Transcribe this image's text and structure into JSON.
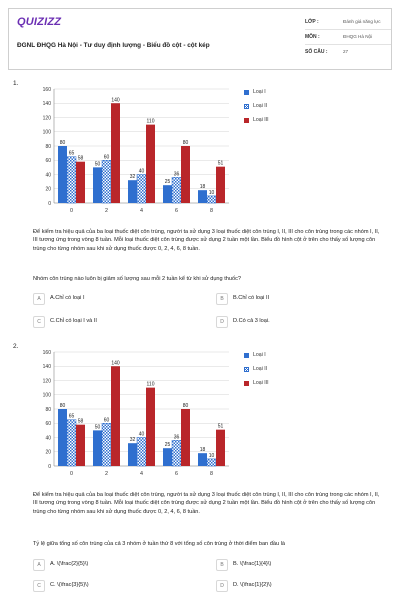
{
  "header": {
    "logo": "QUIZIZZ",
    "title": "ĐGNL ĐHQG Hà Nội - Tư duy định lượng - Biểu đồ cột - cột kép",
    "meta": [
      {
        "label": "LỚP :",
        "value": "Đánh giá năng lực"
      },
      {
        "label": "MÔN :",
        "value": "ĐHQG Hà Nội"
      },
      {
        "label": "SỐ CÂU :",
        "value": "27"
      }
    ]
  },
  "colors": {
    "accent": "#6b2fb3",
    "series_loai_1": "#2f6fcf",
    "series_loai_2": "#2f6fcf",
    "series_loai_3": "#b9262a"
  },
  "questions": [
    {
      "number": "1.",
      "text": "Để kiểm tra hiệu quả của ba loại thuốc diệt côn trùng, người ta sử dụng 3 loại thuốc diệt côn trùng I, II, III cho côn trùng trong các nhóm I, II, III tương ứng trong vòng 8 tuần. Mỗi loại thuốc diệt côn trùng được sử dụng 2 tuần một lần. Biểu đồ hình cột ở trên cho thấy số lượng côn trùng cho từng nhóm sau khi sử dụng thuốc được 0, 2, 4, 6, 8 tuần.",
      "prompt": "Nhóm côn trùng nào luôn bị giảm số lượng sau mỗi 2 tuần kể từ khi sử dụng thuốc?",
      "options": [
        {
          "letter": "A",
          "text": "A.Chỉ có loại I"
        },
        {
          "letter": "B",
          "text": "B.Chỉ có loại II"
        },
        {
          "letter": "C",
          "text": "C.Chỉ có loại I và II"
        },
        {
          "letter": "D",
          "text": "D.Có cả 3 loại."
        }
      ]
    },
    {
      "number": "2.",
      "text": "Để kiểm tra hiệu quả của ba loại thuốc diệt côn trùng, người ta sử dụng 3 loại thuốc diệt côn trùng I, II, III cho côn trùng trong các nhóm I, II, III tương ứng trong vòng 8 tuần. Mỗi loại thuốc diệt côn trùng được sử dụng 2 tuần một lần. Biểu đồ hình cột ở trên cho thấy số lượng côn trùng cho từng nhóm sau khi sử dụng thuốc được 0, 2, 4, 6, 8 tuần.",
      "prompt": "Tỷ lệ giữa tổng số côn trùng của cả 3 nhóm ở tuần thứ 8 với tổng số côn trùng ở thời điểm ban đầu là",
      "options": [
        {
          "letter": "A",
          "text": "A. \\(\\frac{2}{5}\\)"
        },
        {
          "letter": "B",
          "text": "B. \\(\\frac{1}{4}\\)"
        },
        {
          "letter": "C",
          "text": "C. \\(\\frac{3}{5}\\)"
        },
        {
          "letter": "D",
          "text": "D. \\(\\frac{1}{2}\\)"
        }
      ]
    }
  ],
  "chart_data": [
    {
      "type": "bar",
      "categories": [
        "0",
        "2",
        "4",
        "6",
        "8"
      ],
      "series": [
        {
          "name": "Loại I",
          "values": [
            80,
            50,
            32,
            25,
            18
          ]
        },
        {
          "name": "Loại II",
          "values": [
            65,
            60,
            40,
            36,
            10
          ]
        },
        {
          "name": "Loại III",
          "values": [
            58,
            140,
            110,
            80,
            51
          ]
        }
      ],
      "ylim": [
        0,
        160
      ],
      "yticks": [
        "0",
        "20",
        "40",
        "60",
        "80",
        "100",
        "120",
        "140",
        "160"
      ],
      "grid": true,
      "legend": "right"
    },
    {
      "type": "bar",
      "categories": [
        "0",
        "2",
        "4",
        "6",
        "8"
      ],
      "series": [
        {
          "name": "Loại I",
          "values": [
            80,
            50,
            32,
            25,
            18
          ]
        },
        {
          "name": "Loại II",
          "values": [
            65,
            60,
            40,
            36,
            10
          ]
        },
        {
          "name": "Loại III",
          "values": [
            58,
            140,
            110,
            80,
            51
          ]
        }
      ],
      "ylim": [
        0,
        160
      ],
      "yticks": [
        "0",
        "20",
        "40",
        "60",
        "80",
        "100",
        "120",
        "140",
        "160"
      ],
      "grid": true,
      "legend": "right"
    }
  ]
}
